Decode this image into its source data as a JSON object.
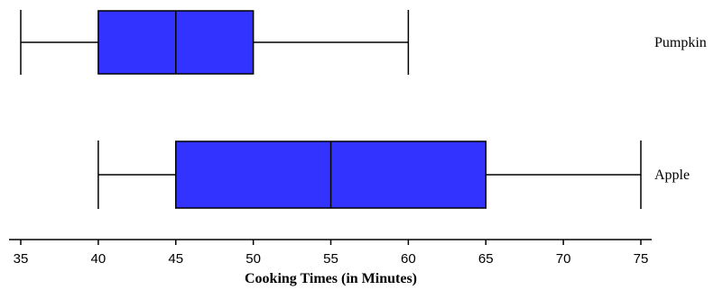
{
  "chart_data": {
    "type": "boxplot",
    "orientation": "horizontal",
    "title": "",
    "xlabel": "Cooking Times (in Minutes)",
    "ylabel": "",
    "xlim": [
      35,
      75
    ],
    "xticks": [
      35,
      40,
      45,
      50,
      55,
      60,
      65,
      70,
      75
    ],
    "grid": false,
    "box_color": "#3333ff",
    "line_color": "#000000",
    "series": [
      {
        "name": "Pumpkin",
        "min": 35,
        "q1": 40,
        "median": 45,
        "q3": 50,
        "max": 60
      },
      {
        "name": "Apple",
        "min": 40,
        "q1": 45,
        "median": 55,
        "q3": 65,
        "max": 75
      }
    ]
  }
}
